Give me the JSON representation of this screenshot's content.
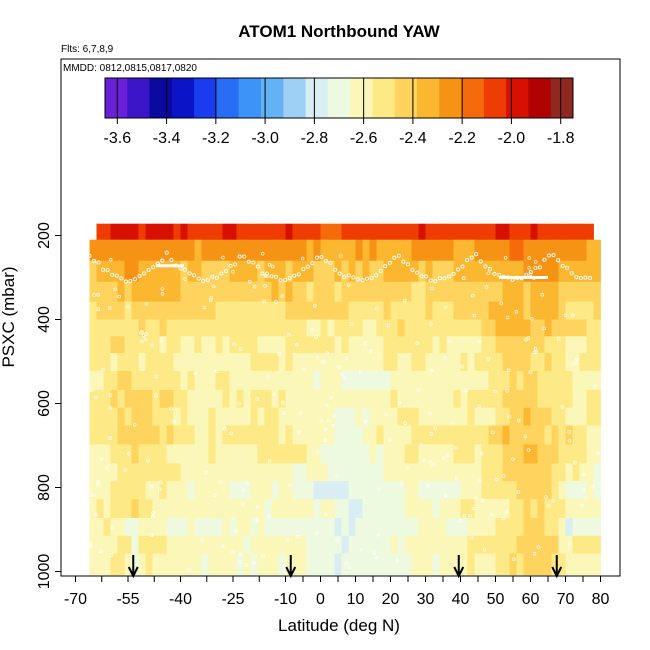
{
  "chart_data": {
    "type": "heatmap",
    "title": "ATOM1 Northbound YAW",
    "annotation_flights": "Flts: 6,7,8,9",
    "annotation_dates": "MMDD: 0812,0815,0817,0820",
    "xlabel": "Latitude (deg N)",
    "ylabel": "PSXC (mbar)",
    "xlim": [
      -70,
      80
    ],
    "ylim": [
      1010,
      135
    ],
    "y_reversed": true,
    "x_tick_labels": [
      "-70",
      "-55",
      "-40",
      "-25",
      "-10",
      "0",
      "10",
      "20",
      "30",
      "40",
      "50",
      "60",
      "70",
      "80"
    ],
    "x_tick_values": [
      -70,
      -55,
      -40,
      -25,
      -10,
      0,
      10,
      20,
      30,
      40,
      50,
      60,
      70,
      80
    ],
    "x_tick_positions": [
      -70,
      -62.5,
      -55,
      -47.5,
      -40,
      -32.5,
      -25,
      -17.5,
      -10,
      -5,
      0,
      5,
      10,
      15,
      20,
      25,
      30,
      35,
      40,
      45,
      50,
      55,
      60,
      65,
      70,
      75,
      80
    ],
    "y_ticks": [
      200,
      400,
      600,
      800,
      1000
    ],
    "colorbar": {
      "min": -3.65,
      "max": -1.75,
      "tick_values": [
        -3.6,
        -3.4,
        -3.2,
        -3.0,
        -2.8,
        -2.6,
        -2.4,
        -2.2,
        -2.0,
        -1.8
      ],
      "tick_labels": [
        "-3.6",
        "-3.4",
        "-3.2",
        "-3.0",
        "-2.8",
        "-2.6",
        "-2.4",
        "-2.2",
        "-2.0",
        "-1.8"
      ],
      "colors": [
        "#6a1fd8",
        "#3a16c8",
        "#0a0a9e",
        "#0b14c6",
        "#1a3cf0",
        "#2a6df5",
        "#3d93f7",
        "#63b2f5",
        "#9dd0f4",
        "#d8eef2",
        "#eefadf",
        "#fbf7b8",
        "#fdea86",
        "#fed45e",
        "#fbb730",
        "#f79314",
        "#f56a0a",
        "#ee3c04",
        "#d81002",
        "#b00202",
        "#8f2820"
      ]
    },
    "pressure_levels": [
      185,
      235,
      285,
      335,
      380,
      420,
      460,
      500,
      545,
      590,
      630,
      675,
      720,
      765,
      805,
      850,
      895,
      935,
      980
    ],
    "lat_min": -66,
    "lat_max": 80,
    "lat_step": 2,
    "value_centers": [
      -2.05,
      -2.28,
      -2.36,
      -2.42,
      -2.48,
      -2.5,
      -2.55,
      -2.58,
      -2.6,
      -2.56,
      -2.56,
      -2.54,
      -2.58,
      -2.6,
      -2.64,
      -2.62,
      -2.66,
      -2.6,
      -2.62
    ],
    "ceiling_pressure": [
      173,
      176,
      173,
      170
    ],
    "arrows_lat": [
      -53.5,
      -8.5,
      39.5,
      67.5
    ],
    "white_streaks": [
      {
        "lat": [
          -47,
          -39
        ],
        "p": 272
      },
      {
        "lat": [
          51,
          65
        ],
        "p": 300
      }
    ]
  }
}
